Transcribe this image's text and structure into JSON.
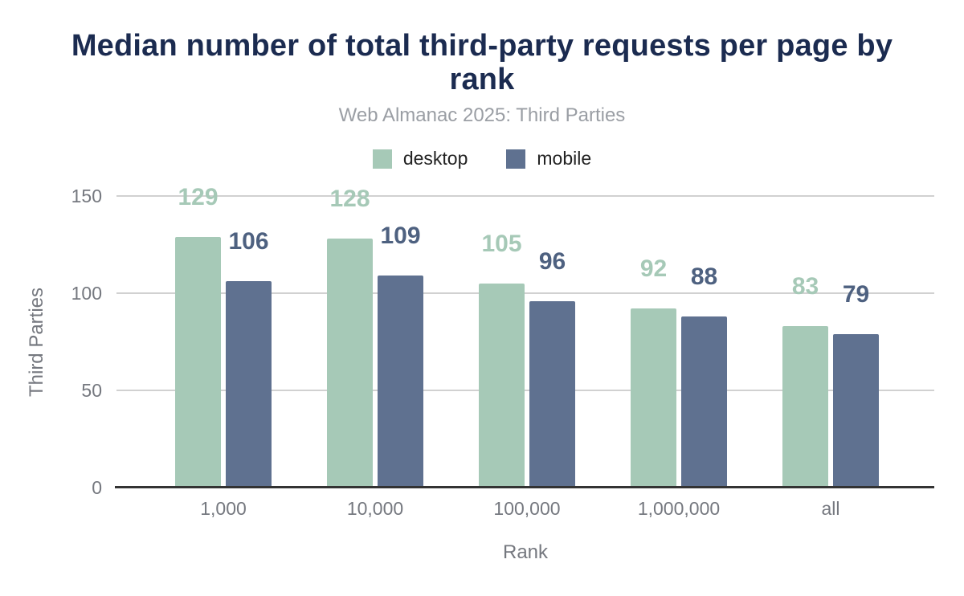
{
  "title": "Median number of total third-party requests per page by rank",
  "subtitle": "Web Almanac 2025: Third Parties",
  "legend": [
    {
      "label": "desktop",
      "color": "#a6c9b7"
    },
    {
      "label": "mobile",
      "color": "#5f7190"
    }
  ],
  "colors": {
    "title": "#1b2b50",
    "subtitle": "#9a9ea4",
    "axis_text": "#75787f",
    "gridline": "#d1d1d1",
    "axis_line": "#333333",
    "desktop": "#a6c9b7",
    "mobile": "#5f7190",
    "desktop_label": "#a6c9b7",
    "mobile_label": "#4e6180"
  },
  "chart_data": {
    "type": "bar",
    "categories": [
      "1,000",
      "10,000",
      "100,000",
      "1,000,000",
      "all"
    ],
    "series": [
      {
        "name": "desktop",
        "color": "#a6c9b7",
        "label_color": "#a6c9b7",
        "values": [
          129,
          128,
          105,
          92,
          83
        ]
      },
      {
        "name": "mobile",
        "color": "#5f7190",
        "label_color": "#4e6180",
        "values": [
          106,
          109,
          96,
          88,
          79
        ]
      }
    ],
    "title": "Median number of total third-party requests per page by rank",
    "subtitle": "Web Almanac 2025: Third Parties",
    "xlabel": "Rank",
    "ylabel": "Third Parties",
    "yticks": [
      0,
      50,
      100,
      150
    ],
    "ylim": [
      0,
      150
    ],
    "grid": true,
    "legend_position": "top",
    "annotations": "values shown above each bar"
  }
}
